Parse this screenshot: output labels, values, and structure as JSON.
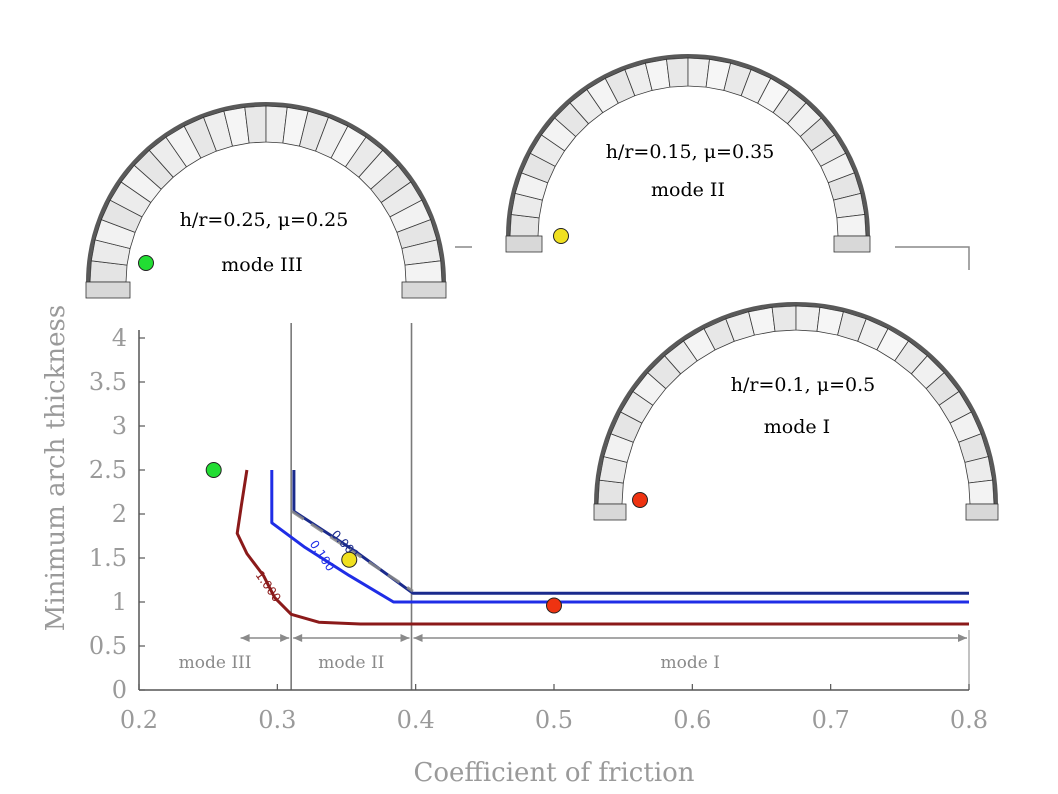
{
  "chart_data": {
    "type": "line",
    "xlabel": "Coefficient of friction",
    "ylabel": "Minimum arch thickness",
    "xlim": [
      0.2,
      0.8
    ],
    "ylim": [
      0,
      4
    ],
    "x_ticks": [
      "0.2",
      "0.3",
      "0.4",
      "0.5",
      "0.6",
      "0.7",
      "0.8"
    ],
    "y_ticks": [
      "0",
      "0.5",
      "1",
      "1.5",
      "2",
      "2.5",
      "3",
      "3.5",
      "4"
    ],
    "series": [
      {
        "name": "1.000",
        "color": "#8b1a1a",
        "points": [
          [
            0.278,
            2.5
          ],
          [
            0.274,
            2.1
          ],
          [
            0.271,
            1.78
          ],
          [
            0.278,
            1.55
          ],
          [
            0.29,
            1.3
          ],
          [
            0.298,
            1.05
          ],
          [
            0.31,
            0.86
          ],
          [
            0.33,
            0.77
          ],
          [
            0.36,
            0.75
          ],
          [
            0.8,
            0.75
          ]
        ]
      },
      {
        "name": "0.100",
        "color": "#1f2de6",
        "points": [
          [
            0.296,
            2.5
          ],
          [
            0.296,
            1.9
          ],
          [
            0.32,
            1.62
          ],
          [
            0.352,
            1.3
          ],
          [
            0.384,
            1.0
          ],
          [
            0.8,
            1.0
          ]
        ]
      },
      {
        "name": "0.001",
        "color": "#1a2a8c",
        "points": [
          [
            0.312,
            2.5
          ],
          [
            0.312,
            2.03
          ],
          [
            0.356,
            1.58
          ],
          [
            0.398,
            1.1
          ],
          [
            0.8,
            1.1
          ]
        ]
      }
    ],
    "mode_boundaries": [
      0.31,
      0.397
    ],
    "mode_ranges": [
      {
        "label": "mode III",
        "from": 0.272,
        "to": 0.31
      },
      {
        "label": "mode II",
        "from": 0.31,
        "to": 0.397
      },
      {
        "label": "mode I",
        "from": 0.397,
        "to": 0.8
      }
    ],
    "markers": [
      {
        "x": 0.254,
        "y": 2.5,
        "color": "#22dd33"
      },
      {
        "x": 0.352,
        "y": 1.48,
        "color": "#f0e020"
      },
      {
        "x": 0.5,
        "y": 0.96,
        "color": "#ee3311"
      }
    ]
  },
  "insets": [
    {
      "params": "h/r=0.25, μ=0.25",
      "mode": "mode III",
      "marker_color": "#22dd33"
    },
    {
      "params": "h/r=0.15, μ=0.35",
      "mode": "mode II",
      "marker_color": "#f0e020"
    },
    {
      "params": "h/r=0.1, μ=0.5",
      "mode": "mode I",
      "marker_color": "#ee3311"
    }
  ]
}
